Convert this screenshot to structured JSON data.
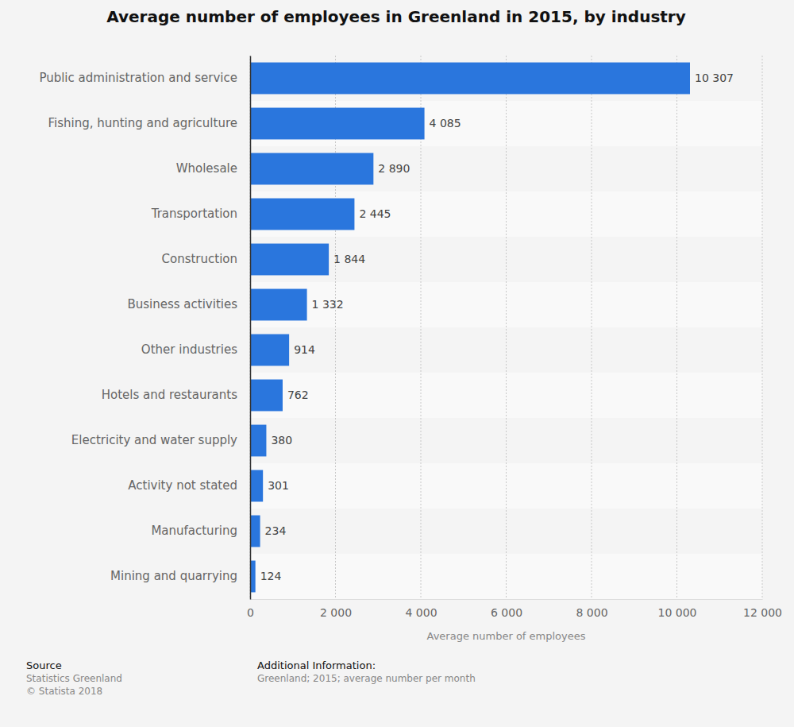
{
  "chart_data": {
    "type": "bar",
    "orientation": "horizontal",
    "title": "Average number of employees in Greenland in 2015, by industry",
    "x_label": "Average number of employees",
    "categories": [
      "Public administration and service",
      "Fishing, hunting and agriculture",
      "Wholesale",
      "Transportation",
      "Construction",
      "Business activities",
      "Other industries",
      "Hotels and restaurants",
      "Electricity and water supply",
      "Activity not stated",
      "Manufacturing",
      "Mining and quarrying"
    ],
    "values": [
      10307,
      4085,
      2890,
      2445,
      1844,
      1332,
      914,
      762,
      380,
      301,
      234,
      124
    ],
    "value_labels": [
      "10 307",
      "4 085",
      "2 890",
      "2 445",
      "1 844",
      "1 332",
      "914",
      "762",
      "380",
      "301",
      "234",
      "124"
    ],
    "color": "#2a76dd",
    "xlim": [
      0,
      12000
    ],
    "xticks": [
      0,
      {
        "value": 2000,
        "label": "2 000"
      },
      {
        "value": 4000,
        "label": "4 000"
      },
      {
        "value": 6000,
        "label": "6 000"
      },
      {
        "value": 8000,
        "label": "8 000"
      },
      {
        "value": 10000,
        "label": "10 000"
      },
      {
        "value": 12000,
        "label": "12 000"
      }
    ],
    "grid": true,
    "data_labels": true,
    "source_heading": "Source",
    "source": "Statistics Greenland",
    "copyright": "© Statista 2018",
    "info_heading": "Additional Information:",
    "info": "Greenland; 2015; average number per month"
  }
}
